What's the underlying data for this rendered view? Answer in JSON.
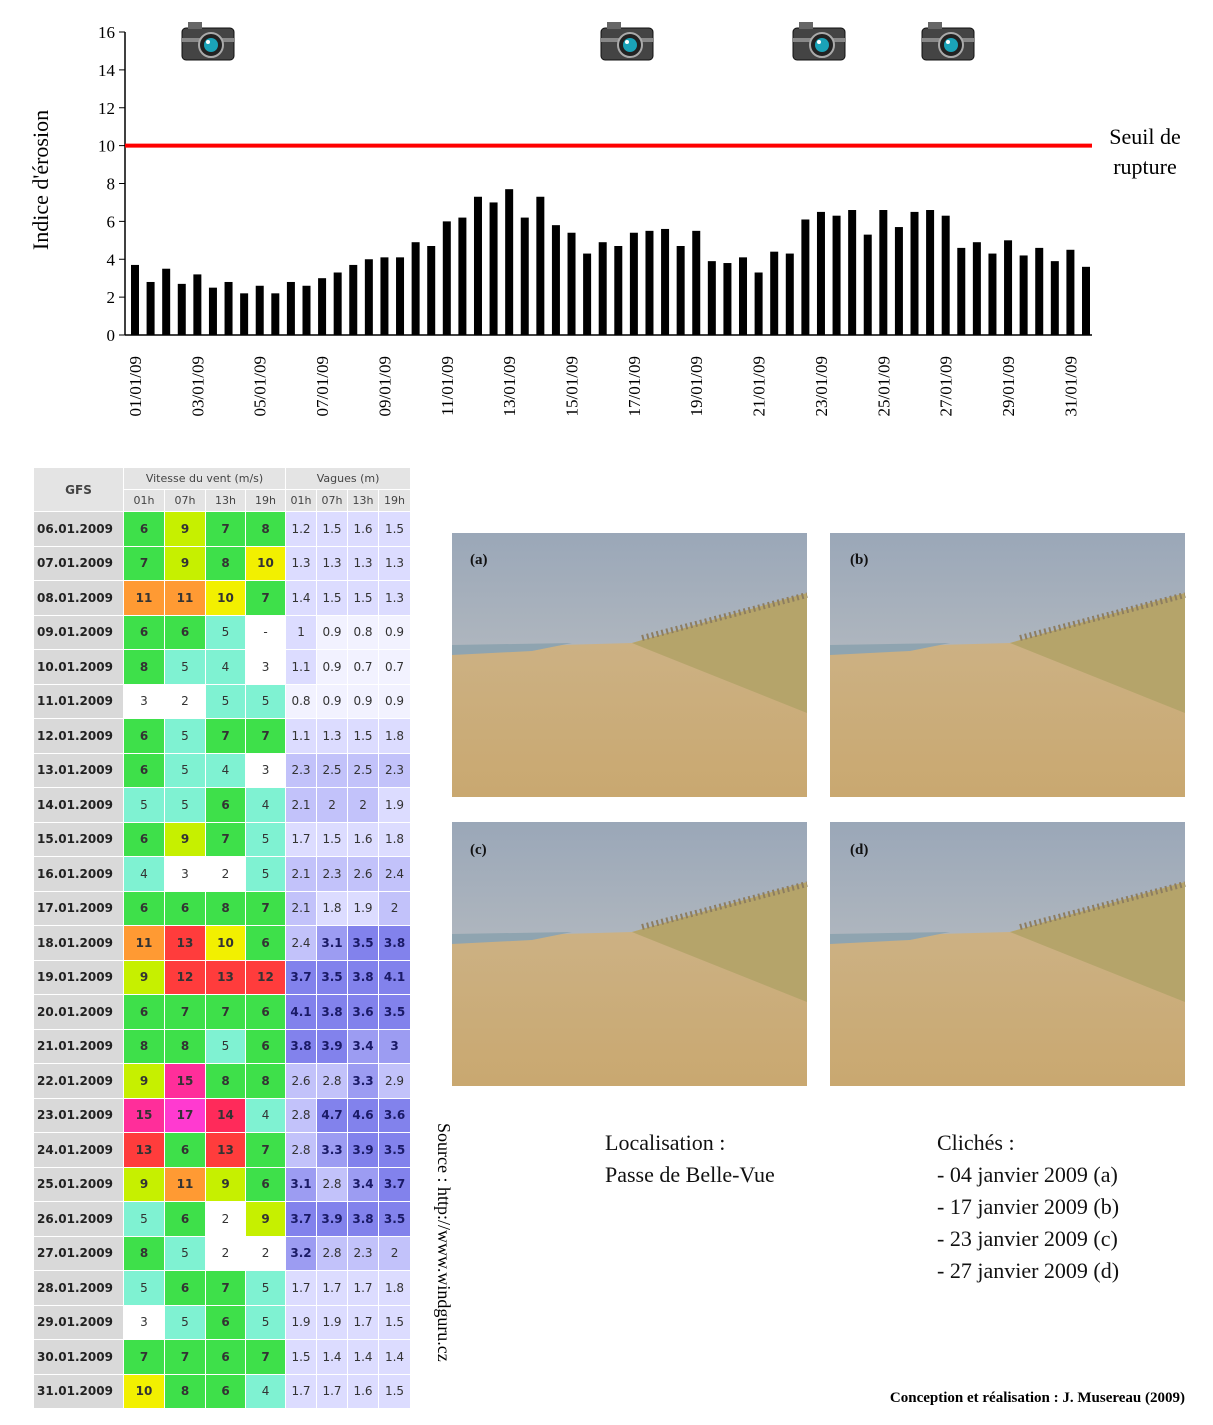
{
  "chart_data": {
    "type": "bar",
    "ylabel": "Indice d'érosion",
    "categories": [
      "01/01/09",
      null,
      null,
      null,
      "03/01/09",
      null,
      null,
      null,
      "05/01/09",
      null,
      null,
      null,
      "07/01/09",
      null,
      null,
      null,
      "09/01/09",
      null,
      null,
      null,
      "11/01/09",
      null,
      null,
      null,
      "13/01/09",
      null,
      null,
      null,
      "15/01/09",
      null,
      null,
      null,
      "17/01/09",
      null,
      null,
      null,
      "19/01/09",
      null,
      null,
      null,
      "21/01/09",
      null,
      null,
      null,
      "23/01/09",
      null,
      null,
      null,
      "25/01/09",
      null,
      null,
      null,
      "27/01/09",
      null,
      null,
      null,
      "29/01/09",
      null,
      null,
      null,
      "31/01/09",
      null
    ],
    "values": [
      3.7,
      2.8,
      3.5,
      2.7,
      3.2,
      2.5,
      2.8,
      2.2,
      2.6,
      2.2,
      2.8,
      2.6,
      3.0,
      3.3,
      3.7,
      4.0,
      4.1,
      4.1,
      4.9,
      4.7,
      6.0,
      6.2,
      7.3,
      7.0,
      7.7,
      6.2,
      7.3,
      5.8,
      5.4,
      4.3,
      4.9,
      4.7,
      5.4,
      5.5,
      5.6,
      4.7,
      5.5,
      3.9,
      3.8,
      4.1,
      3.3,
      4.4,
      4.3,
      6.1,
      6.5,
      6.3,
      6.6,
      5.3,
      6.6,
      5.7,
      6.5,
      6.6,
      6.3,
      4.6,
      4.9,
      4.3,
      5.0,
      4.2,
      4.6,
      3.9,
      4.5,
      3.6
    ],
    "color": "#000000",
    "ylim": [
      0,
      16
    ],
    "yticks": [
      0,
      2,
      4,
      6,
      8,
      10,
      12,
      14,
      16
    ],
    "threshold": {
      "value": 10,
      "label": "Seuil de rupture",
      "color": "#ff0000"
    }
  },
  "table": {
    "header": {
      "corner": "GFS",
      "wind": "Vitesse du vent (m/s)",
      "waves": "Vagues (m)",
      "hours": [
        "01h",
        "07h",
        "13h",
        "19h",
        "01h",
        "07h",
        "13h",
        "19h"
      ]
    },
    "rows": [
      [
        "06.01.2009",
        "6",
        "9",
        "7",
        "8",
        "1.2",
        "1.5",
        "1.6",
        "1.5"
      ],
      [
        "07.01.2009",
        "7",
        "9",
        "8",
        "10",
        "1.3",
        "1.3",
        "1.3",
        "1.3"
      ],
      [
        "08.01.2009",
        "11",
        "11",
        "10",
        "7",
        "1.4",
        "1.5",
        "1.5",
        "1.3"
      ],
      [
        "09.01.2009",
        "6",
        "6",
        "5",
        "-",
        "1",
        "0.9",
        "0.8",
        "0.9"
      ],
      [
        "10.01.2009",
        "8",
        "5",
        "4",
        "3",
        "1.1",
        "0.9",
        "0.7",
        "0.7"
      ],
      [
        "11.01.2009",
        "3",
        "2",
        "5",
        "5",
        "0.8",
        "0.9",
        "0.9",
        "0.9"
      ],
      [
        "12.01.2009",
        "6",
        "5",
        "7",
        "7",
        "1.1",
        "1.3",
        "1.5",
        "1.8"
      ],
      [
        "13.01.2009",
        "6",
        "5",
        "4",
        "3",
        "2.3",
        "2.5",
        "2.5",
        "2.3"
      ],
      [
        "14.01.2009",
        "5",
        "5",
        "6",
        "4",
        "2.1",
        "2",
        "2",
        "1.9"
      ],
      [
        "15.01.2009",
        "6",
        "9",
        "7",
        "5",
        "1.7",
        "1.5",
        "1.6",
        "1.8"
      ],
      [
        "16.01.2009",
        "4",
        "3",
        "2",
        "5",
        "2.1",
        "2.3",
        "2.6",
        "2.4"
      ],
      [
        "17.01.2009",
        "6",
        "6",
        "8",
        "7",
        "2.1",
        "1.8",
        "1.9",
        "2"
      ],
      [
        "18.01.2009",
        "11",
        "13",
        "10",
        "6",
        "2.4",
        "3.1",
        "3.5",
        "3.8"
      ],
      [
        "19.01.2009",
        "9",
        "12",
        "13",
        "12",
        "3.7",
        "3.5",
        "3.8",
        "4.1"
      ],
      [
        "20.01.2009",
        "6",
        "7",
        "7",
        "6",
        "4.1",
        "3.8",
        "3.6",
        "3.5"
      ],
      [
        "21.01.2009",
        "8",
        "8",
        "5",
        "6",
        "3.8",
        "3.9",
        "3.4",
        "3"
      ],
      [
        "22.01.2009",
        "9",
        "15",
        "8",
        "8",
        "2.6",
        "2.8",
        "3.3",
        "2.9"
      ],
      [
        "23.01.2009",
        "15",
        "17",
        "14",
        "4",
        "2.8",
        "4.7",
        "4.6",
        "3.6"
      ],
      [
        "24.01.2009",
        "13",
        "6",
        "13",
        "7",
        "2.8",
        "3.3",
        "3.9",
        "3.5"
      ],
      [
        "25.01.2009",
        "9",
        "11",
        "9",
        "6",
        "3.1",
        "2.8",
        "3.4",
        "3.7"
      ],
      [
        "26.01.2009",
        "5",
        "6",
        "2",
        "9",
        "3.7",
        "3.9",
        "3.8",
        "3.5"
      ],
      [
        "27.01.2009",
        "8",
        "5",
        "2",
        "2",
        "3.2",
        "2.8",
        "2.3",
        "2"
      ],
      [
        "28.01.2009",
        "5",
        "6",
        "7",
        "5",
        "1.7",
        "1.7",
        "1.7",
        "1.8"
      ],
      [
        "29.01.2009",
        "3",
        "5",
        "6",
        "5",
        "1.9",
        "1.9",
        "1.7",
        "1.5"
      ],
      [
        "30.01.2009",
        "7",
        "7",
        "6",
        "7",
        "1.5",
        "1.4",
        "1.4",
        "1.4"
      ],
      [
        "31.01.2009",
        "10",
        "8",
        "6",
        "4",
        "1.7",
        "1.7",
        "1.6",
        "1.5"
      ]
    ]
  },
  "photos": [
    "(a)",
    "(b)",
    "(c)",
    "(d)"
  ],
  "location": {
    "title": "Localisation :",
    "place": "Passe de Belle-Vue"
  },
  "shots": {
    "title": "Clichés :",
    "items": [
      "- 04 janvier 2009 (a)",
      "- 17 janvier 2009 (b)",
      "- 23 janvier 2009 (c)",
      "- 27 janvier 2009 (d)"
    ]
  },
  "source": "Source : http://www.windguru.cz",
  "credit": "Conception et réalisation : J. Musereau (2009)"
}
